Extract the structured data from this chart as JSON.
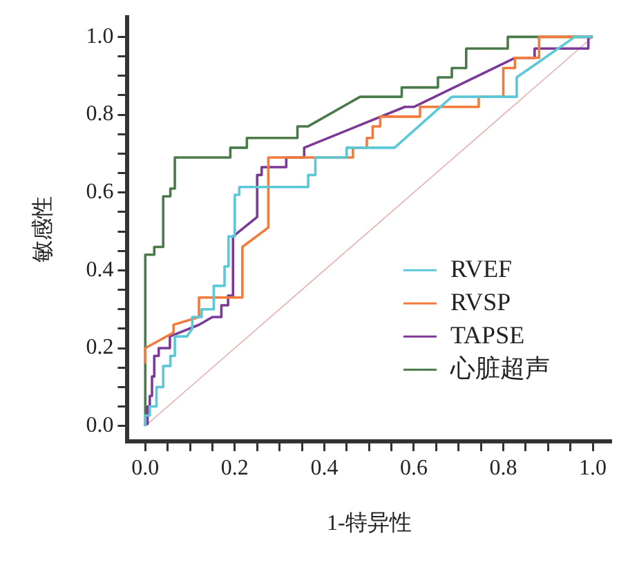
{
  "chart_data": {
    "type": "line",
    "xlabel": "1-特异性",
    "ylabel": "敏感性",
    "xlim": [
      -0.04,
      1.04
    ],
    "ylim": [
      -0.04,
      1.05
    ],
    "xticks": [
      {
        "value": 0.05,
        "label": null
      },
      {
        "value": 0.1,
        "label": null
      },
      {
        "value": 0.15,
        "label": null
      },
      {
        "value": 0,
        "label": "0.0"
      },
      0.2,
      {
        "value": 0.25,
        "label": null
      },
      {
        "value": 0.3,
        "label": null
      },
      {
        "value": 0.35,
        "label": null
      },
      0.4,
      {
        "value": 0.45,
        "label": null
      },
      {
        "value": 0.5,
        "label": null
      },
      {
        "value": 0.55,
        "label": null
      },
      0.6,
      {
        "value": 0.65,
        "label": null
      },
      {
        "value": 0.7,
        "label": null
      },
      {
        "value": 0.75,
        "label": null
      },
      0.8,
      {
        "value": 0.85,
        "label": null
      },
      {
        "value": 0.9,
        "label": null
      },
      {
        "value": 0.95,
        "label": null
      },
      {
        "value": 1,
        "label": "1.0"
      }
    ],
    "yticks": [
      {
        "value": 0,
        "label": "0.0"
      },
      {
        "value": 0.05,
        "label": null
      },
      {
        "value": 0.1,
        "label": null
      },
      {
        "value": 0.15,
        "label": null
      },
      0.2,
      {
        "value": 0.25,
        "label": null
      },
      {
        "value": 0.3,
        "label": null
      },
      {
        "value": 0.35,
        "label": null
      },
      0.4,
      {
        "value": 0.45,
        "label": null
      },
      {
        "value": 0.5,
        "label": null
      },
      {
        "value": 0.55,
        "label": null
      },
      0.6,
      {
        "value": 0.65,
        "label": null
      },
      {
        "value": 0.7,
        "label": null
      },
      {
        "value": 0.75,
        "label": null
      },
      0.8,
      {
        "value": 0.85,
        "label": null
      },
      {
        "value": 0.9,
        "label": null
      },
      {
        "value": 0.95,
        "label": null
      },
      {
        "value": 1,
        "label": "1.0"
      }
    ],
    "grid": false,
    "legend": "bottom right",
    "marker": "none",
    "line_style": "solid",
    "series": [
      {
        "name": "RVEF",
        "color": "#5bc8d8",
        "x": [
          0,
          0,
          0.01,
          0.01,
          0.025,
          0.025,
          0.04,
          0.04,
          0.056,
          0.056,
          0.066,
          0.066,
          0.093,
          0.105,
          0.105,
          0.126,
          0.126,
          0.153,
          0.153,
          0.177,
          0.177,
          0.186,
          0.186,
          0.2,
          0.2,
          0.21,
          0.21,
          0.364,
          0.364,
          0.38,
          0.38,
          0.45,
          0.45,
          0.557,
          0.685,
          0.83,
          0.83,
          0.96,
          1
        ],
        "values": [
          0,
          0.027,
          0.027,
          0.05,
          0.05,
          0.1,
          0.1,
          0.154,
          0.154,
          0.18,
          0.18,
          0.23,
          0.23,
          0.25,
          0.28,
          0.28,
          0.3,
          0.3,
          0.36,
          0.36,
          0.41,
          0.41,
          0.487,
          0.487,
          0.594,
          0.594,
          0.614,
          0.614,
          0.645,
          0.645,
          0.69,
          0.69,
          0.715,
          0.715,
          0.846,
          0.846,
          0.896,
          1,
          1
        ]
      },
      {
        "name": "RVSP",
        "color": "#f47a3c",
        "x": [
          0,
          0,
          0.063,
          0.063,
          0.12,
          0.12,
          0.217,
          0.217,
          0.275,
          0.275,
          0.464,
          0.464,
          0.495,
          0.495,
          0.508,
          0.508,
          0.525,
          0.525,
          0.614,
          0.614,
          0.745,
          0.745,
          0.8,
          0.8,
          0.826,
          0.826,
          0.88,
          0.88,
          1
        ],
        "values": [
          0.16,
          0.2,
          0.24,
          0.26,
          0.28,
          0.33,
          0.33,
          0.46,
          0.51,
          0.69,
          0.69,
          0.715,
          0.715,
          0.74,
          0.74,
          0.77,
          0.77,
          0.795,
          0.795,
          0.82,
          0.82,
          0.846,
          0.846,
          0.92,
          0.92,
          0.946,
          0.946,
          1,
          1
        ]
      },
      {
        "name": "TAPSE",
        "color": "#7a3a96",
        "x": [
          0,
          0,
          0.005,
          0.005,
          0.01,
          0.01,
          0.015,
          0.015,
          0.02,
          0.02,
          0.03,
          0.03,
          0.055,
          0.055,
          0.12,
          0.15,
          0.17,
          0.17,
          0.185,
          0.185,
          0.196,
          0.196,
          0.25,
          0.25,
          0.26,
          0.26,
          0.315,
          0.315,
          0.355,
          0.355,
          0.58,
          0.6,
          0.826,
          0.87,
          0.87,
          0.99,
          0.99,
          1
        ],
        "values": [
          0,
          0.005,
          0.005,
          0.05,
          0.05,
          0.077,
          0.077,
          0.127,
          0.127,
          0.18,
          0.18,
          0.2,
          0.2,
          0.23,
          0.26,
          0.28,
          0.28,
          0.31,
          0.31,
          0.335,
          0.335,
          0.487,
          0.537,
          0.645,
          0.645,
          0.665,
          0.665,
          0.69,
          0.69,
          0.715,
          0.82,
          0.82,
          0.946,
          0.946,
          0.97,
          0.97,
          1,
          1
        ]
      },
      {
        "name": "心脏超声",
        "color": "#4a7a4a",
        "x": [
          0,
          0,
          0.02,
          0.02,
          0.04,
          0.04,
          0.056,
          0.056,
          0.066,
          0.066,
          0.19,
          0.19,
          0.227,
          0.227,
          0.34,
          0.34,
          0.364,
          0.48,
          0.573,
          0.573,
          0.654,
          0.654,
          0.685,
          0.685,
          0.717,
          0.717,
          0.81,
          0.81,
          1
        ],
        "values": [
          0,
          0.44,
          0.44,
          0.46,
          0.46,
          0.59,
          0.59,
          0.61,
          0.61,
          0.69,
          0.69,
          0.715,
          0.715,
          0.74,
          0.74,
          0.77,
          0.77,
          0.846,
          0.846,
          0.87,
          0.87,
          0.896,
          0.896,
          0.92,
          0.92,
          0.97,
          0.97,
          1,
          1
        ]
      },
      {
        "color": "#e6b8b8",
        "x": [
          0,
          1
        ],
        "values": [
          0,
          1
        ]
      }
    ]
  }
}
